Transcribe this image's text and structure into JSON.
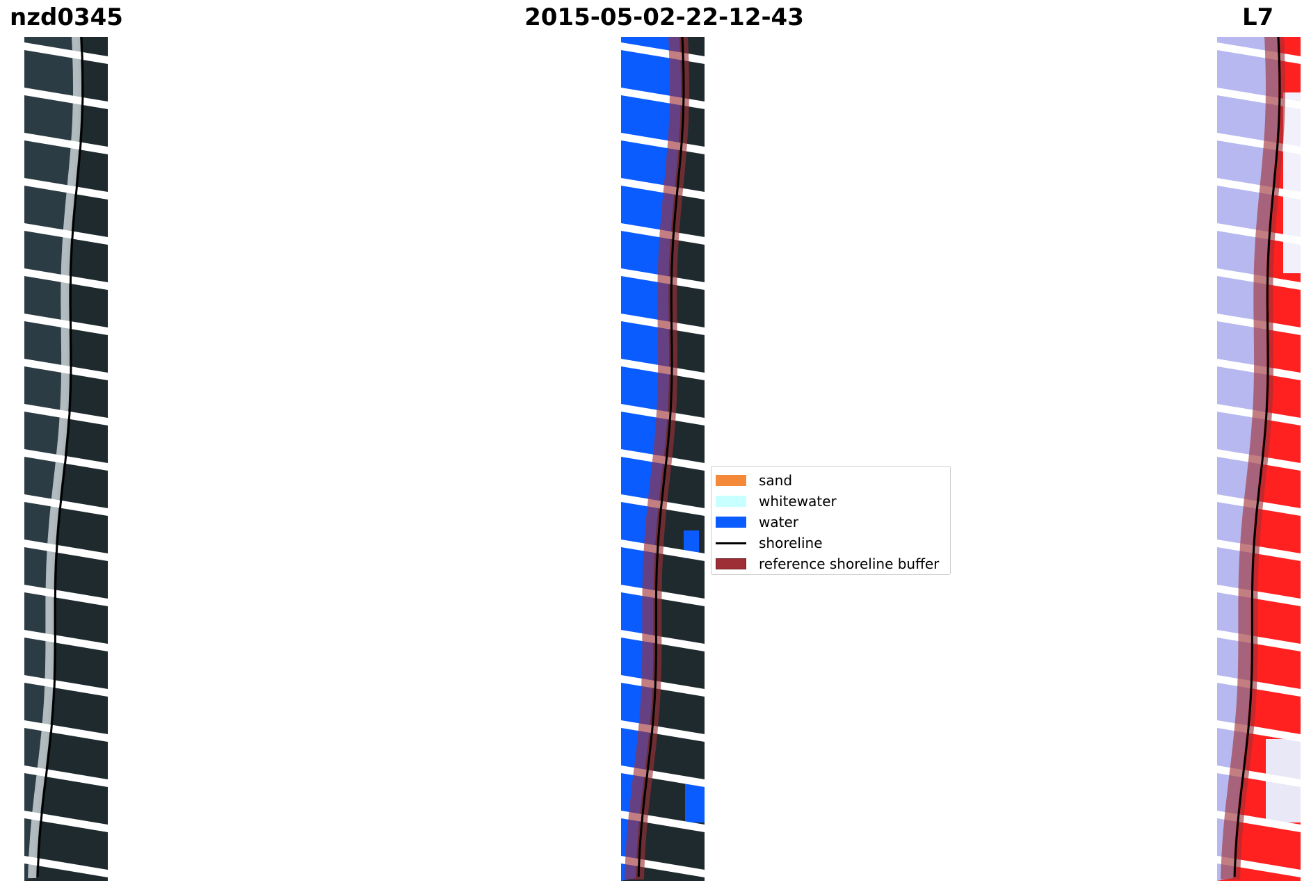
{
  "titles": {
    "site": "nzd0345",
    "date": "2015-05-02-22-12-43",
    "satellite": "L7"
  },
  "colors": {
    "sand": "#f5893a",
    "whitewater": "#c8ffff",
    "water": "#0a5cff",
    "shoreline": "#000000",
    "buffer": "#9e2f36",
    "land_dark": "#1f2a2e",
    "mndwi_water": "#b7b8f0",
    "mndwi_land": "#ff2020",
    "scanline_gap": "#ffffff"
  },
  "legend": {
    "items": [
      {
        "label": "sand",
        "color_key": "sand",
        "kind": "patch"
      },
      {
        "label": "whitewater",
        "color_key": "whitewater",
        "kind": "patch"
      },
      {
        "label": "water",
        "color_key": "water",
        "kind": "patch"
      },
      {
        "label": "shoreline",
        "color_key": "shoreline",
        "kind": "line"
      },
      {
        "label": "reference shoreline buffer",
        "color_key": "buffer",
        "kind": "patch"
      }
    ]
  },
  "panels": [
    {
      "name": "rgb-image-panel",
      "icon": "satellite-rgb-image"
    },
    {
      "name": "classified-image-panel",
      "icon": "classification-map"
    },
    {
      "name": "mndwi-image-panel",
      "icon": "mndwi-index-map"
    }
  ]
}
